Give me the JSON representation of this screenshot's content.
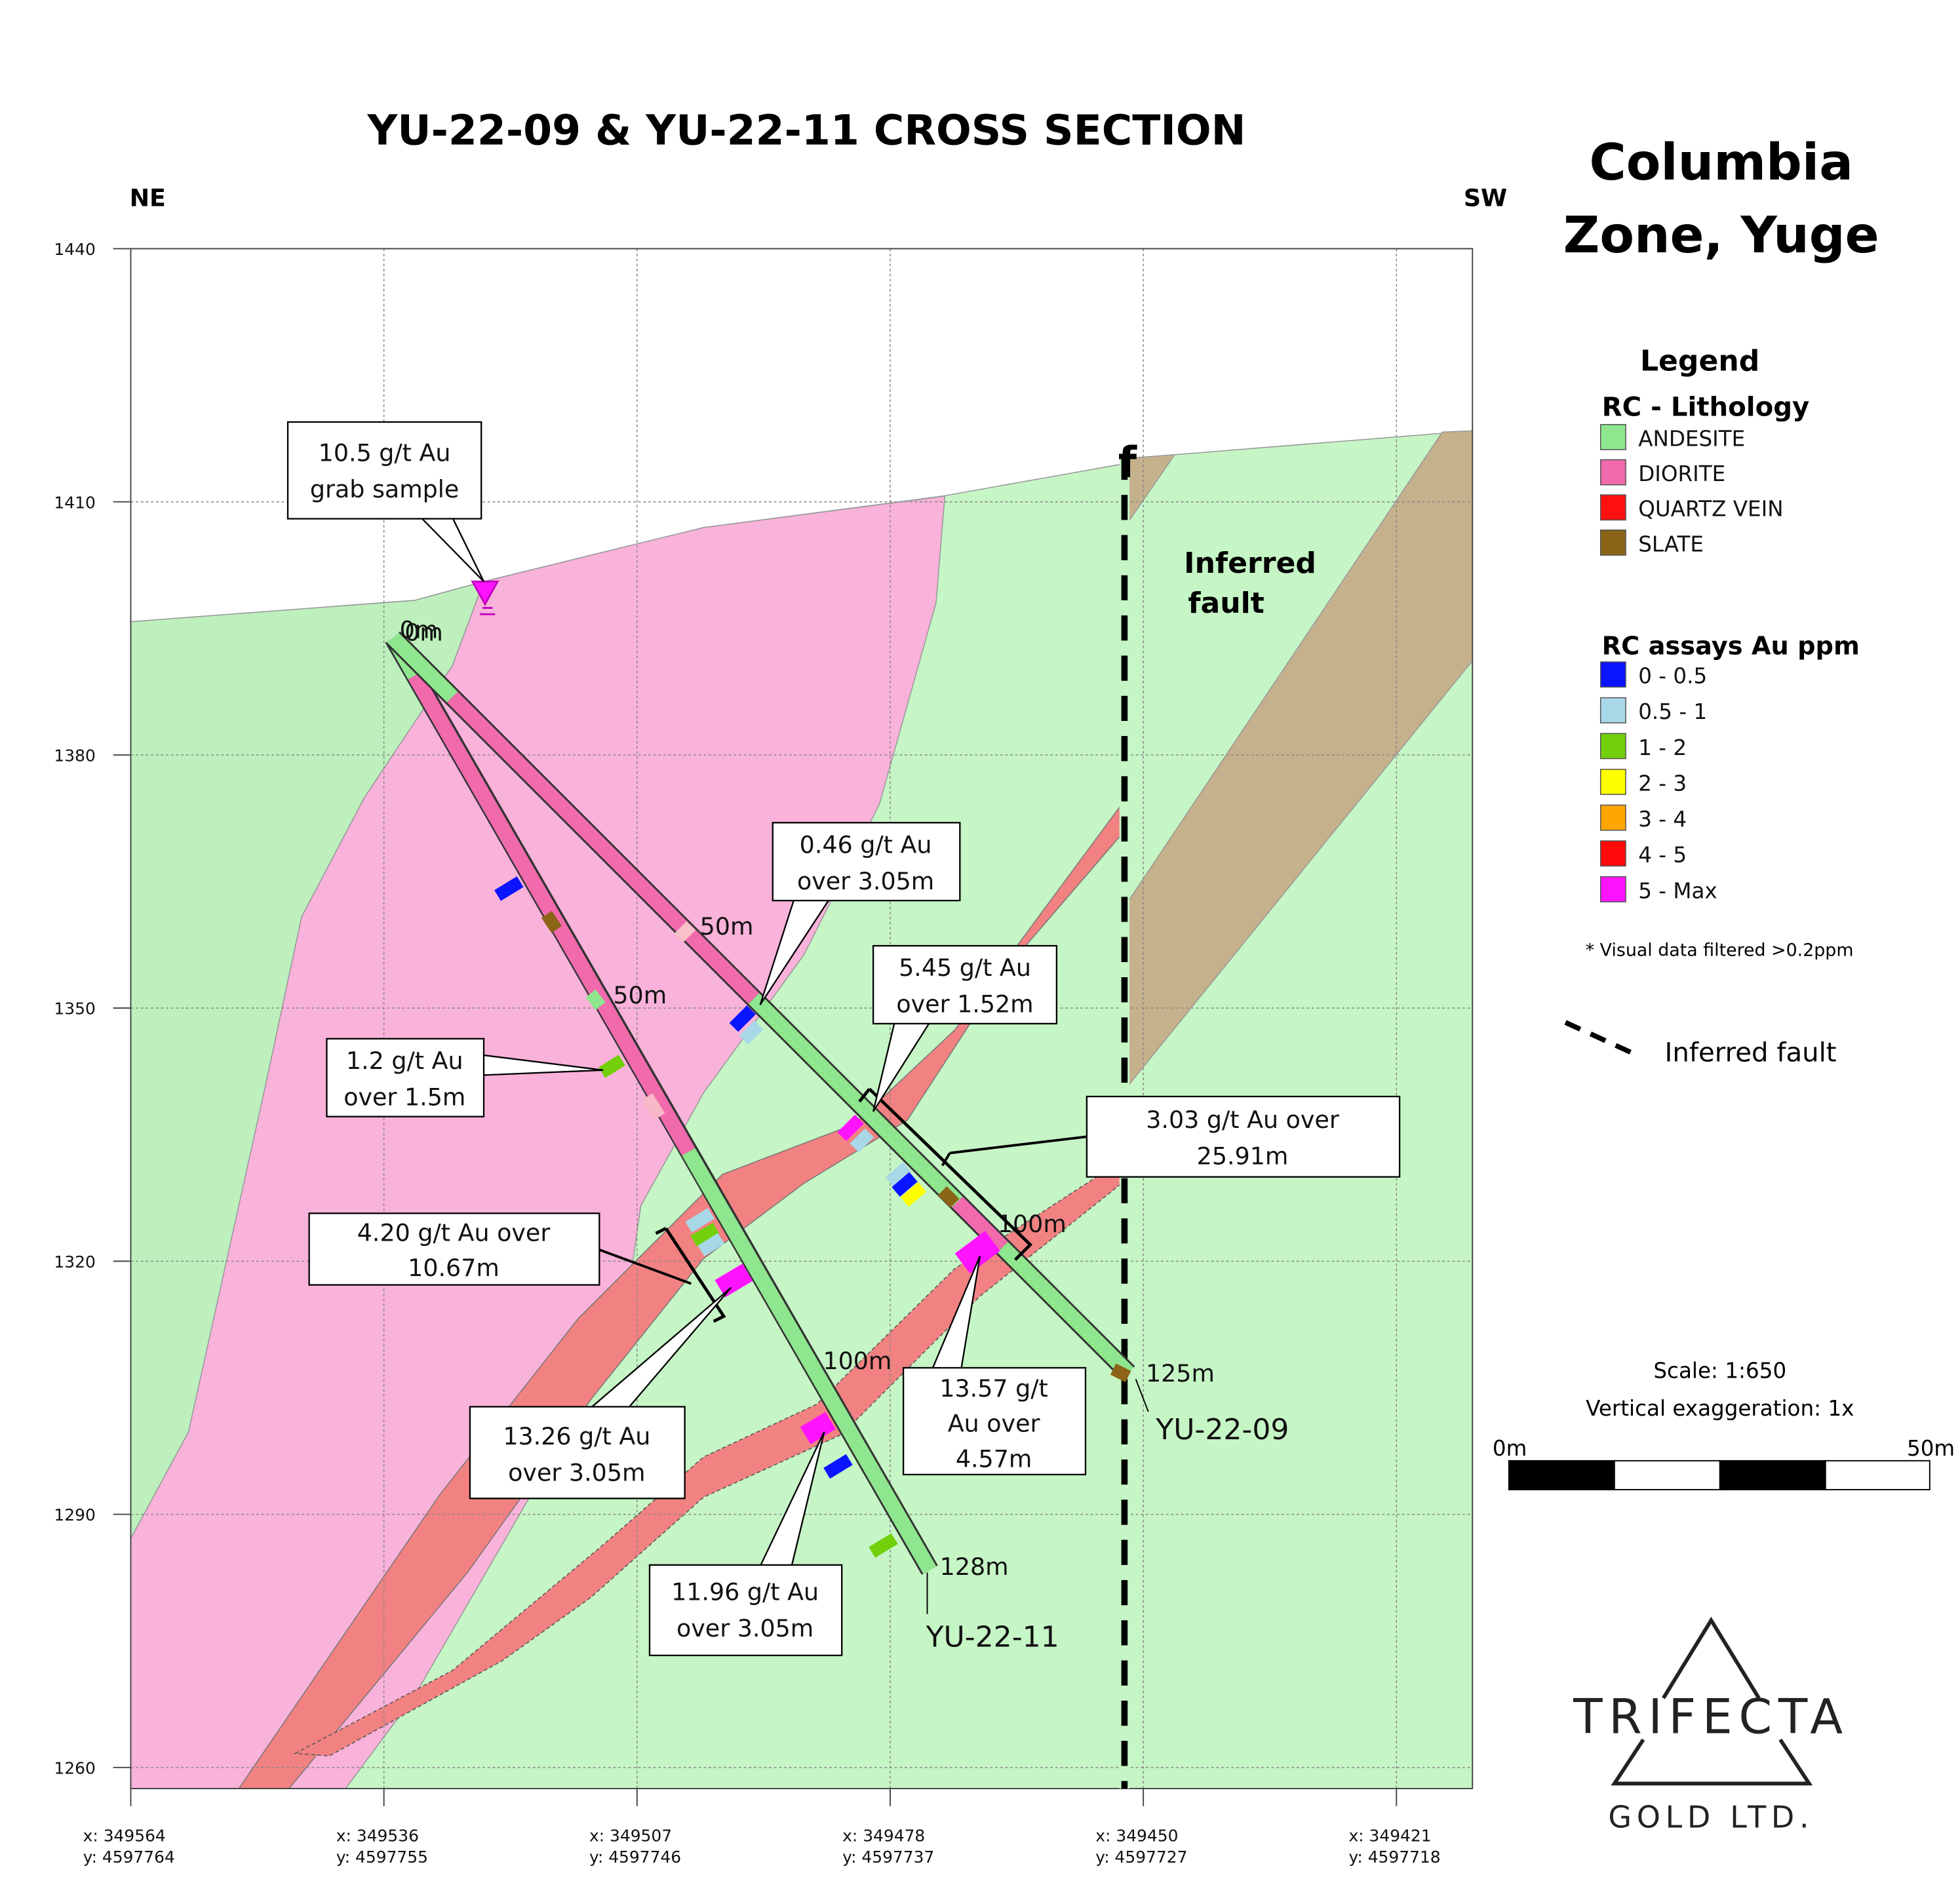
{
  "title": "YU-22-09 & YU-22-11 CROSS SECTION",
  "direction_left": "NE",
  "direction_right": "SW",
  "zone_title": [
    "Columbia",
    "Zone, Yuge"
  ],
  "axis": {
    "ylim": [
      1257.5,
      1440
    ],
    "yticks": [
      1260,
      1290,
      1320,
      1350,
      1380,
      1410,
      1440
    ],
    "x_labels": [
      {
        "x": "x: 349564",
        "y": "y: 4597764"
      },
      {
        "x": "x: 349536",
        "y": "y: 4597755"
      },
      {
        "x": "x: 349507",
        "y": "y: 4597746"
      },
      {
        "x": "x: 349478",
        "y": "y: 4597737"
      },
      {
        "x": "x: 349450",
        "y": "y: 4597727"
      },
      {
        "x": "x: 349421",
        "y": "y: 4597718"
      }
    ]
  },
  "legend": {
    "title": "Legend",
    "lithology_title": "RC - Lithology",
    "lithology": [
      {
        "label": "ANDESITE",
        "color": "#8ee68e"
      },
      {
        "label": "DIORITE",
        "color": "#f06aac"
      },
      {
        "label": "QUARTZ VEIN",
        "color": "#ff1010"
      },
      {
        "label": "SLATE",
        "color": "#8b6418"
      }
    ],
    "assays_title": "RC assays Au ppm",
    "assays": [
      {
        "label": "0 - 0.5",
        "color": "#0a14ff"
      },
      {
        "label": "0.5 - 1",
        "color": "#a8d8e8"
      },
      {
        "label": "1 - 2",
        "color": "#72d00a"
      },
      {
        "label": "2 - 3",
        "color": "#ffff00"
      },
      {
        "label": "3 - 4",
        "color": "#ffa500"
      },
      {
        "label": "4 - 5",
        "color": "#ff0a0a"
      },
      {
        "label": "5 - Max",
        "color": "#ff14ff"
      }
    ],
    "note": "* Visual data filtered >0.2ppm",
    "fault_label": "Inferred fault"
  },
  "annotations": [
    [
      "10.5 g/t Au",
      "grab sample"
    ],
    [
      "0.46 g/t Au",
      "over 3.05m"
    ],
    [
      "5.45 g/t Au",
      "over 1.52m"
    ],
    [
      "1.2 g/t Au",
      "over 1.5m"
    ],
    [
      "3.03 g/t Au over",
      "25.91m"
    ],
    [
      "4.20 g/t Au over",
      "10.67m"
    ],
    [
      "13.26 g/t Au",
      "over 3.05m"
    ],
    [
      "13.57 g/t",
      "Au over",
      "4.57m"
    ],
    [
      "11.96 g/t Au",
      "over 3.05m"
    ]
  ],
  "holes": [
    {
      "name": "YU-22-09",
      "depth_labels": [
        "0m",
        "50m",
        "100m",
        "125m"
      ]
    },
    {
      "name": "YU-22-11",
      "depth_labels": [
        "0m",
        "50m",
        "100m",
        "128m"
      ]
    }
  ],
  "fault": {
    "symbol": "f",
    "label": [
      "Inferred",
      "fault"
    ]
  },
  "scale": {
    "text": "Scale: 1:650",
    "exaggeration": "Vertical exaggeration: 1x",
    "start": "0m",
    "end": "50m"
  },
  "logo": {
    "name": "TRIFECTA",
    "sub": "GOLD LTD."
  }
}
